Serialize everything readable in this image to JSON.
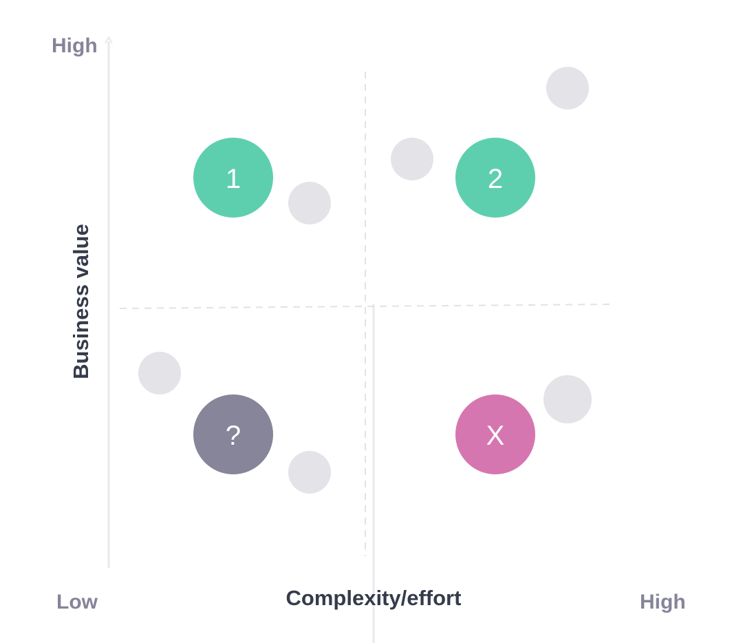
{
  "axes": {
    "y_title": "Business value",
    "y_high": "High",
    "x_title": "Complexity/effort",
    "x_low": "Low",
    "x_high": "High"
  },
  "quadrants": {
    "top_left": {
      "label": "1",
      "color": "#5ecfae"
    },
    "top_right": {
      "label": "2",
      "color": "#5ecfae"
    },
    "bottom_left": {
      "label": "?",
      "color": "#868599"
    },
    "bottom_right": {
      "label": "X",
      "color": "#d676b1"
    }
  },
  "colors": {
    "placeholder_dot": "#e3e3e8",
    "axis_line": "#e8e8ec",
    "divider": "#e2e2e6"
  }
}
